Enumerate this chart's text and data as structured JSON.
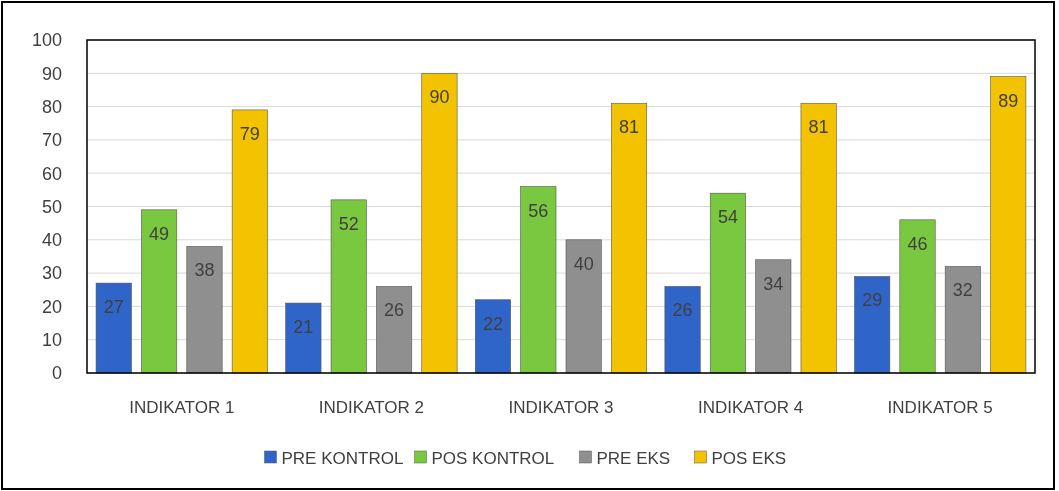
{
  "chart_data": {
    "type": "bar",
    "categories": [
      "INDIKATOR 1",
      "INDIKATOR 2",
      "INDIKATOR 3",
      "INDIKATOR 4",
      "INDIKATOR 5"
    ],
    "series": [
      {
        "name": "PRE KONTROL",
        "color": "#2f65c9",
        "values": [
          27,
          21,
          22,
          26,
          29
        ]
      },
      {
        "name": "POS KONTROL",
        "color": "#79c83f",
        "values": [
          49,
          52,
          56,
          54,
          46
        ]
      },
      {
        "name": "PRE EKS",
        "color": "#8f8f8f",
        "values": [
          38,
          26,
          40,
          34,
          32
        ]
      },
      {
        "name": "POS EKS",
        "color": "#f4c300",
        "values": [
          79,
          90,
          81,
          81,
          89
        ]
      }
    ],
    "ylim": [
      0,
      100
    ],
    "yticks": [
      0,
      10,
      20,
      30,
      40,
      50,
      60,
      70,
      80,
      90,
      100
    ],
    "grid": "y",
    "legend": "bottom",
    "data_labels": true
  }
}
